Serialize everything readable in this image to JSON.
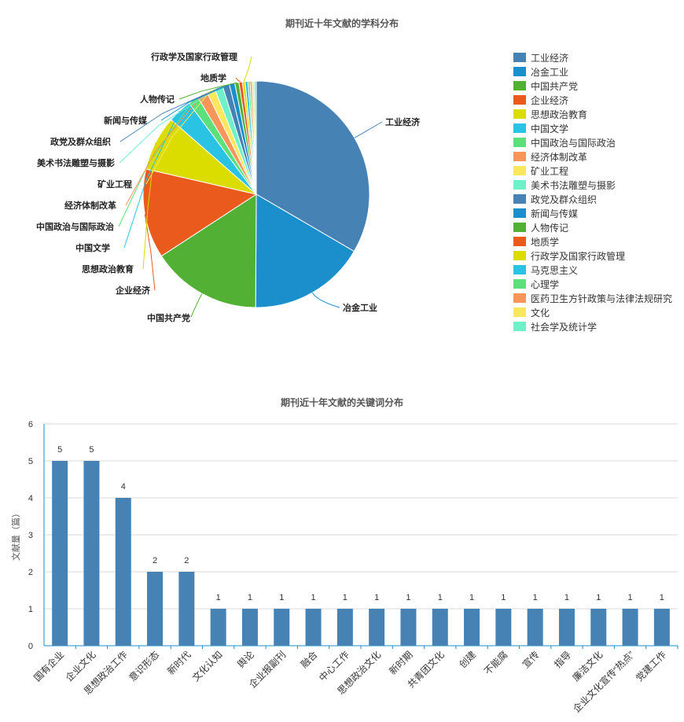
{
  "pie_chart": {
    "title": "期刊近十年文献的学科分布"
  },
  "bar_chart": {
    "title": "期刊近十年文献的关键词分布",
    "ylabel": "文献量（篇）"
  },
  "chart_data": [
    {
      "type": "pie",
      "title": "期刊近十年文献的学科分布",
      "legend_position": "right",
      "categories": [
        "工业经济",
        "冶金工业",
        "中国共产党",
        "企业经济",
        "思想政治教育",
        "中国文学",
        "中国政治与国际政治",
        "经济体制改革",
        "矿业工程",
        "美术书法雕塑与摄影",
        "政党及群众组织",
        "新闻与传媒",
        "人物传记",
        "地质学",
        "行政学及国家行政管理",
        "马克思主义",
        "心理学",
        "医药卫生方针政策与法律法规研究",
        "文化",
        "社会学及统计学"
      ],
      "values": [
        34,
        17,
        16,
        13,
        8,
        3.5,
        1.5,
        1.5,
        1.2,
        1.2,
        1,
        0.8,
        0.6,
        0.5,
        0.4,
        0.4,
        0.3,
        0.3,
        0.3,
        0.3
      ],
      "colors": [
        "#4682b4",
        "#1a8fcb",
        "#52b035",
        "#ea5a1d",
        "#dbdc00",
        "#2ac3e3",
        "#5de07b",
        "#f8965a",
        "#f9e85e",
        "#6ef0c9",
        "#4682b4",
        "#1a8fcb",
        "#52b035",
        "#ea5a1d",
        "#dbdc00",
        "#2ac3e3",
        "#5de07b",
        "#f8965a",
        "#f9e85e",
        "#6ef0c9"
      ],
      "labeled": [
        "工业经济",
        "冶金工业",
        "中国共产党",
        "企业经济",
        "思想政治教育",
        "中国文学",
        "中国政治与国际政治",
        "经济体制改革",
        "矿业工程",
        "美术书法雕塑与摄影",
        "政党及群众组织",
        "新闻与传媒",
        "人物传记",
        "地质学",
        "行政学及国家行政管理"
      ]
    },
    {
      "type": "bar",
      "title": "期刊近十年文献的关键词分布",
      "xlabel": "",
      "ylabel": "文献量（篇）",
      "ylim": [
        0,
        6
      ],
      "yticks": [
        0,
        1,
        2,
        3,
        4,
        5,
        6
      ],
      "grid": true,
      "color": "#4682b4",
      "categories": [
        "国有企业",
        "企业文化",
        "思想政治工作",
        "意识形态",
        "新时代",
        "文化认知",
        "舆论",
        "企业报副刊",
        "融合",
        "中心工作",
        "思想政治文化",
        "新时期",
        "共青团文化",
        "创建",
        "不能腐",
        "宣传",
        "指导",
        "廉洁文化",
        "企业文化宣传“热点”",
        "党建工作"
      ],
      "values": [
        5,
        5,
        4,
        2,
        2,
        1,
        1,
        1,
        1,
        1,
        1,
        1,
        1,
        1,
        1,
        1,
        1,
        1,
        1,
        1
      ]
    }
  ]
}
